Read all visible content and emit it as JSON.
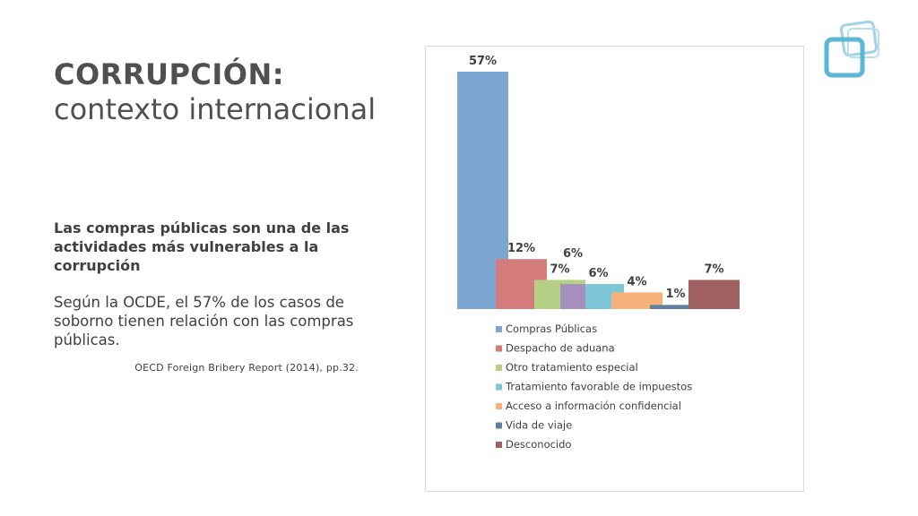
{
  "slide": {
    "title_bold": "CORRUPCIÓN:",
    "title_sub": "contexto internacional",
    "lead": "Las compras públicas son una de las actividades más vulnerables a la corrupción",
    "paragraph": "Según la OCDE, el 57% de los casos de soborno tienen relación con las compras públicas.",
    "source": "OECD Foreign Bribery Report (2014), pp.32."
  },
  "logo_icon": "overlapping-squares-logo",
  "colors": {
    "accent": "#5bb7d6"
  },
  "chart_data": {
    "type": "bar",
    "series": [
      {
        "name": "Compras Públicas",
        "value": 57,
        "label": "57%",
        "color": "#7ea6d2"
      },
      {
        "name": "Despacho de aduana",
        "value": 12,
        "label": "12%",
        "color": "#d47b7b"
      },
      {
        "name": "Otro tratamiento especial",
        "value": 7,
        "label": "7%",
        "color": "#b5cf84"
      },
      {
        "name": "Tratamiento favorable de impuestos",
        "value": 6,
        "label": "6%",
        "color": "#7cc6d6"
      },
      {
        "name": "Acceso a información confidencial",
        "value": 4,
        "label": "4%",
        "color": "#f7b07a"
      },
      {
        "name": "Vida de viaje",
        "value": 1,
        "label": "1%",
        "color": "#5f7ea0"
      },
      {
        "name": "Desconocido",
        "value": 7,
        "label": "7%",
        "color": "#a06060"
      }
    ],
    "purple_series_note_label": "6%",
    "ylim": [
      0,
      57
    ],
    "legend_position": "bottom",
    "grid": false
  }
}
